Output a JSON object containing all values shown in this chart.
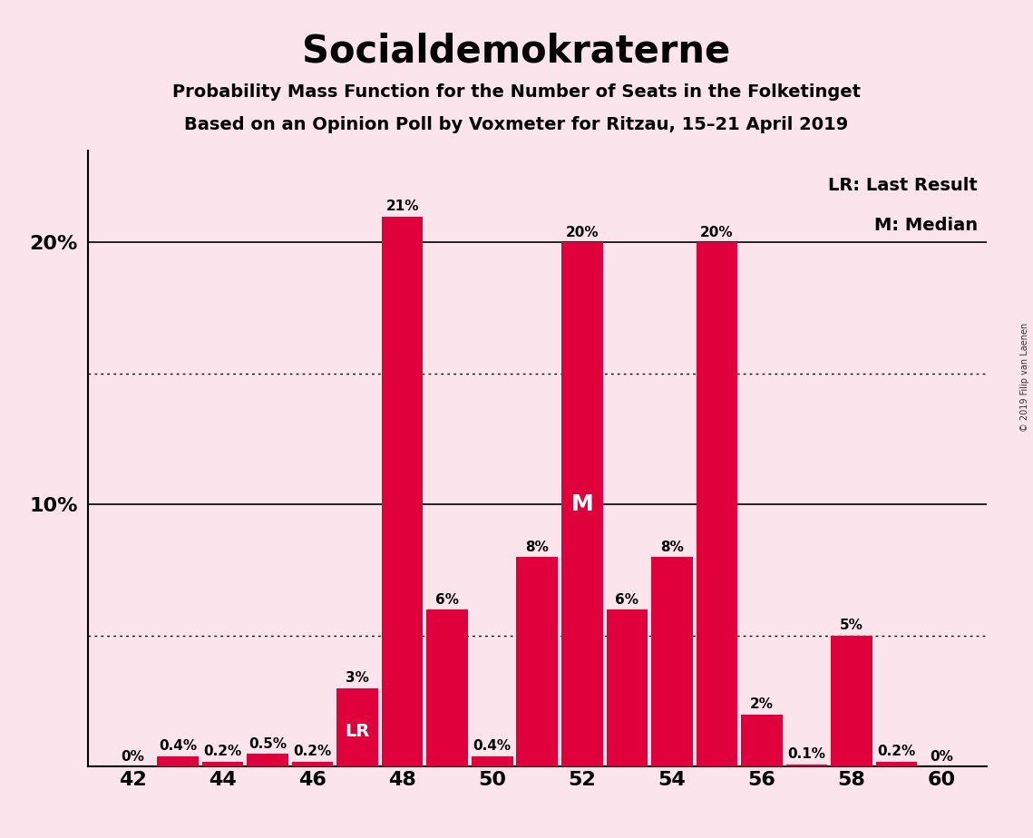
{
  "title": "Socialdemokraterne",
  "subtitle1": "Probability Mass Function for the Number of Seats in the Folketinget",
  "subtitle2": "Based on an Opinion Poll by Voxmeter for Ritzau, 15–21 April 2019",
  "copyright": "© 2019 Filip van Laenen",
  "seats": [
    42,
    43,
    44,
    45,
    46,
    47,
    48,
    49,
    50,
    51,
    52,
    53,
    54,
    55,
    56,
    57,
    58,
    59,
    60
  ],
  "probabilities": [
    0.0,
    0.4,
    0.2,
    0.5,
    0.2,
    3.0,
    21.0,
    6.0,
    0.4,
    8.0,
    20.0,
    6.0,
    8.0,
    20.0,
    2.0,
    0.1,
    5.0,
    0.2,
    0.0
  ],
  "bar_color": "#e0003c",
  "background_color": "#fce4ec",
  "lr_seat": 47,
  "median_seat": 52,
  "xtick_seats": [
    42,
    44,
    46,
    48,
    50,
    52,
    54,
    56,
    58,
    60
  ],
  "solid_gridlines": [
    10.0,
    20.0
  ],
  "dotted_gridlines": [
    5.0,
    15.0
  ],
  "ymax": 23.5,
  "bar_width": 0.92
}
